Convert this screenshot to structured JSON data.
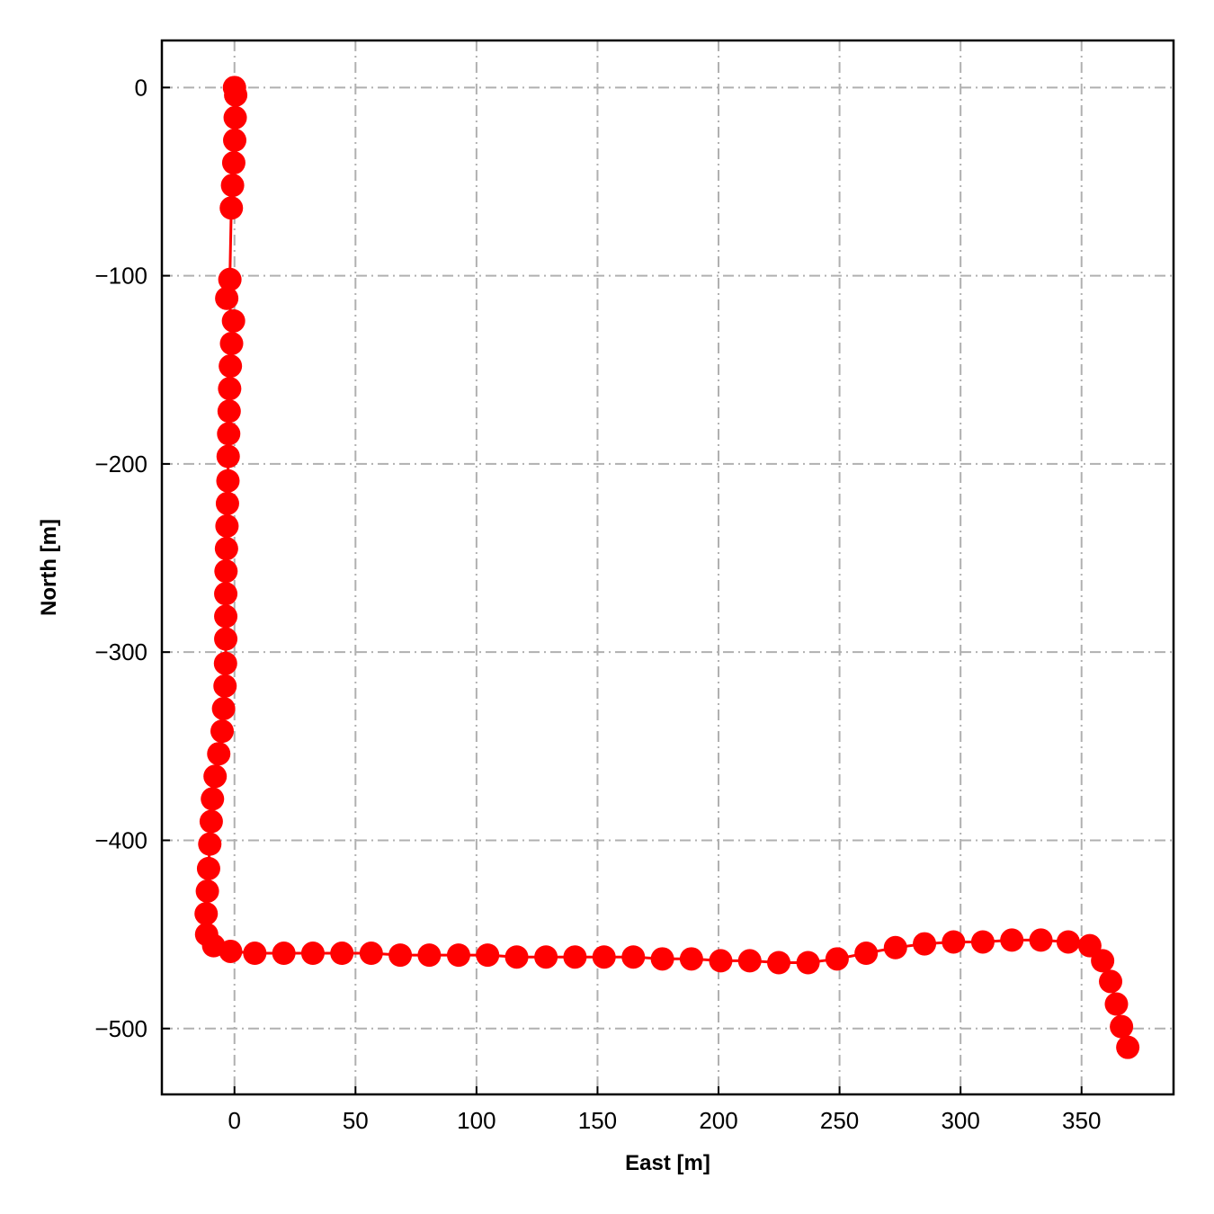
{
  "chart_data": {
    "type": "line",
    "title": "",
    "xlabel": "East [m]",
    "ylabel": "North [m]",
    "xlim": [
      -30,
      388
    ],
    "ylim": [
      -535,
      25
    ],
    "xticks": [
      0,
      50,
      100,
      150,
      200,
      250,
      300,
      350
    ],
    "yticks": [
      0,
      -100,
      -200,
      -300,
      -400,
      -500
    ],
    "xtick_labels": [
      "0",
      "50",
      "100",
      "150",
      "200",
      "250",
      "300",
      "350"
    ],
    "ytick_labels": [
      "0",
      "−100",
      "−200",
      "−300",
      "−400",
      "−500"
    ],
    "grid": true,
    "grid_style": "dash-dot",
    "legend": "none",
    "series": [
      {
        "color": "#ff0000",
        "marker": "circle",
        "x": [
          0,
          0.5,
          0.3,
          0.1,
          -0.3,
          -0.8,
          -1.3,
          -1.9,
          -3.2,
          -0.4,
          -1.2,
          -1.7,
          -2.0,
          -2.2,
          -2.4,
          -2.6,
          -2.7,
          -2.9,
          -3.1,
          -3.3,
          -3.5,
          -3.6,
          -3.6,
          -3.6,
          -3.7,
          -3.9,
          -4.5,
          -5.1,
          -6.5,
          -8.0,
          -9.1,
          -9.6,
          -10.2,
          -10.7,
          -11.2,
          -11.7,
          -11.5,
          -8.6,
          -1.6,
          8.4,
          20.4,
          32.4,
          44.4,
          56.5,
          68.5,
          80.5,
          92.6,
          104.6,
          116.6,
          128.7,
          140.7,
          152.7,
          164.8,
          176.8,
          188.8,
          200.9,
          212.9,
          224.9,
          237.0,
          249.0,
          261.0,
          273.1,
          285.1,
          297.1,
          309.2,
          321.2,
          333.2,
          344.5,
          353.4,
          358.7,
          362.0,
          364.4,
          366.5,
          369.1
        ],
        "y": [
          0,
          -4,
          -16,
          -28,
          -40,
          -52,
          -64,
          -102,
          -112,
          -124,
          -136,
          -148,
          -160,
          -172,
          -184,
          -196,
          -209,
          -221,
          -233,
          -245,
          -257,
          -269,
          -281,
          -293,
          -306,
          -318,
          -330,
          -342,
          -354,
          -366,
          -378,
          -390,
          -402,
          -415,
          -427,
          -439,
          -450,
          -456,
          -459,
          -460,
          -460,
          -460,
          -460,
          -460,
          -461,
          -461,
          -461,
          -461,
          -462,
          -462,
          -462,
          -462,
          -462,
          -463,
          -463,
          -464,
          -464,
          -465,
          -465,
          -463,
          -460,
          -457,
          -455,
          -454,
          -454,
          -453,
          -453,
          -454,
          -456,
          -464,
          -475,
          -487,
          -499,
          -510
        ]
      }
    ]
  }
}
